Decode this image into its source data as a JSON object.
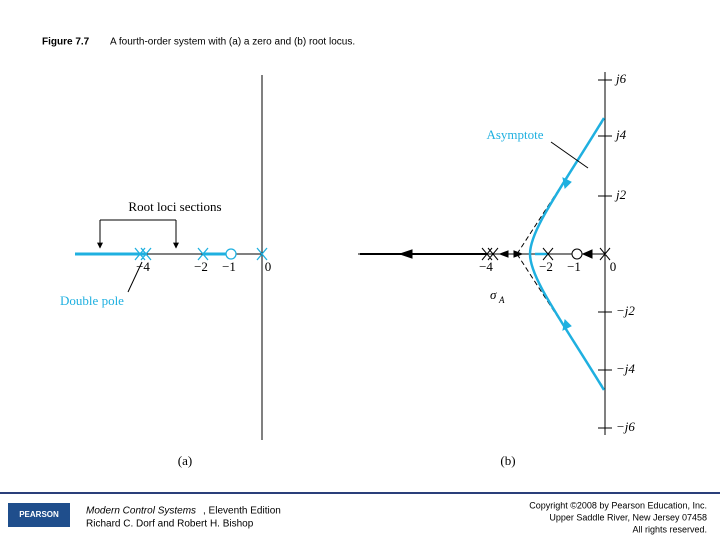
{
  "header": {
    "figure": "Figure 7.7",
    "caption": "A fourth-order system with (a) a zero and (b) root locus."
  },
  "panel_a": {
    "sections_label": "Root loci sections",
    "double_pole_label": "Double pole",
    "real_ticks": [
      "−4",
      "−2",
      "−1",
      "0"
    ],
    "caption": "(a)"
  },
  "panel_b": {
    "asymptote_label": "Asymptote",
    "sigma": "σ",
    "sigma_sub": "A",
    "real_ticks": [
      "−4",
      "−2",
      "−1",
      "0"
    ],
    "imag_ticks": [
      "j6",
      "j4",
      "j2",
      "−j2",
      "−j4",
      "−j6"
    ],
    "caption": "(b)"
  },
  "footer": {
    "logo": "PEARSON",
    "book_title": "Modern Control Systems",
    "edition": ", Eleventh Edition",
    "authors": "Richard C. Dorf and Robert H. Bishop",
    "copyright": [
      "Copyright ©2008 by Pearson Education, Inc.",
      "Upper Saddle River, New Jersey 07458",
      "All rights reserved."
    ]
  }
}
